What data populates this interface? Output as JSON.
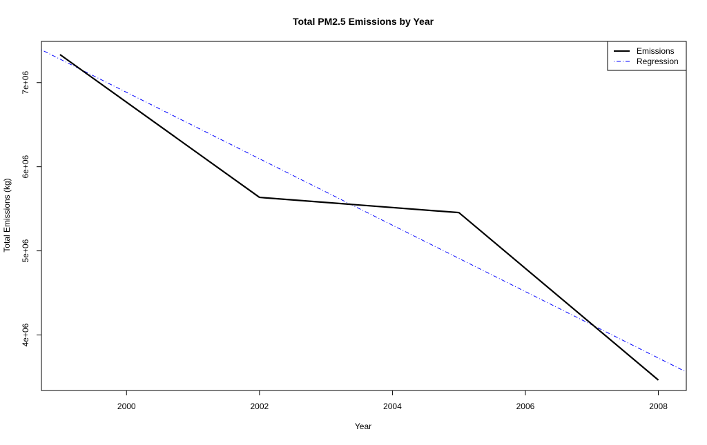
{
  "chart_data": {
    "type": "line",
    "title": "Total PM2.5 Emissions by Year",
    "xlabel": "Year",
    "ylabel": "Total Emissions (kg)",
    "xlim": [
      1998.72,
      2008.42
    ],
    "ylim": [
      3340000,
      7490000
    ],
    "x_ticks": [
      2000,
      2002,
      2004,
      2006,
      2008
    ],
    "x_tick_labels": [
      "2000",
      "2002",
      "2004",
      "2006",
      "2008"
    ],
    "y_ticks": [
      4000000,
      5000000,
      6000000,
      7000000
    ],
    "y_tick_labels": [
      "4e+06",
      "5e+06",
      "6e+06",
      "7e+06"
    ],
    "grid": false,
    "legend_position": "top-right",
    "series": [
      {
        "name": "Emissions",
        "style": "solid",
        "color": "#000000",
        "x": [
          1999,
          2002,
          2005,
          2008
        ],
        "y": [
          7332967,
          5635780,
          5454703,
          3464206
        ]
      }
    ],
    "regression": {
      "name": "Regression",
      "style": "dotdash",
      "color": "#0000ff",
      "x": [
        1998.72,
        2008.42
      ],
      "y": [
        7390000,
        3560000
      ]
    }
  }
}
